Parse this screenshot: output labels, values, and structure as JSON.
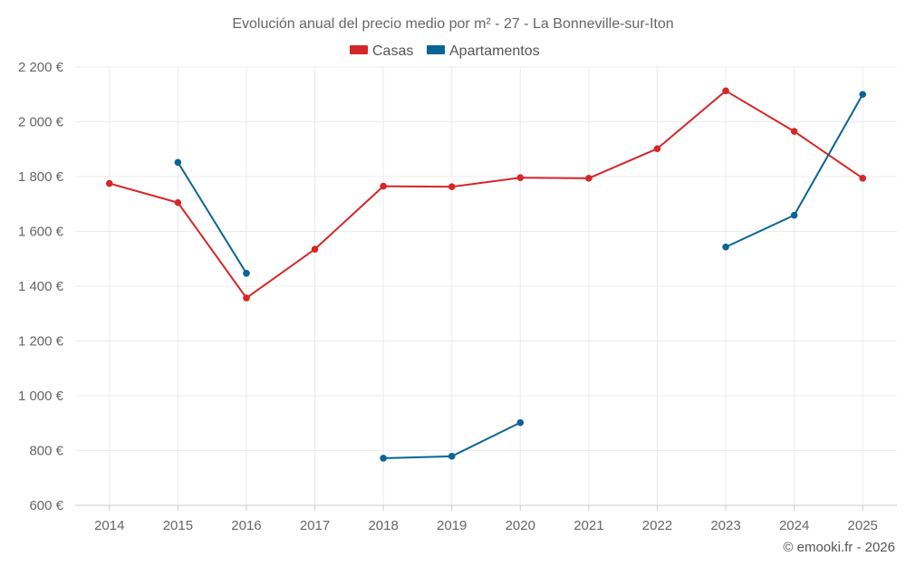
{
  "colors": {
    "casas": "#d62728",
    "apartamentos": "#0b6496"
  },
  "credit": "© emooki.fr - 2026",
  "chart_data": {
    "type": "line",
    "title": "Evolución anual del precio medio por m² - 27 - La Bonneville-sur-Iton",
    "xlabel": "",
    "ylabel": "",
    "categories": [
      "2014",
      "2015",
      "2016",
      "2017",
      "2018",
      "2019",
      "2020",
      "2021",
      "2022",
      "2023",
      "2024",
      "2025"
    ],
    "ylim": [
      600,
      2200
    ],
    "yticks": [
      600,
      800,
      1000,
      1200,
      1400,
      1600,
      1800,
      2000,
      2200
    ],
    "ytick_labels": [
      "600 €",
      "800 €",
      "1 000 €",
      "1 200 €",
      "1 400 €",
      "1 600 €",
      "1 800 €",
      "2 000 €",
      "2 200 €"
    ],
    "legend_position": "top-center",
    "grid": true,
    "series": [
      {
        "name": "Casas",
        "color_key": "casas",
        "values": [
          1775,
          1705,
          1357,
          1535,
          1765,
          1763,
          1796,
          1794,
          1902,
          2113,
          1965,
          1794
        ]
      },
      {
        "name": "Apartamentos",
        "color_key": "apartamentos",
        "values": [
          null,
          1852,
          1447,
          null,
          772,
          779,
          902,
          null,
          null,
          1543,
          1659,
          2100
        ]
      }
    ]
  }
}
